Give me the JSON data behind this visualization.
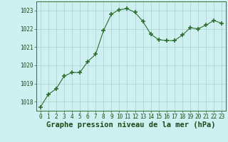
{
  "x": [
    0,
    1,
    2,
    3,
    4,
    5,
    6,
    7,
    8,
    9,
    10,
    11,
    12,
    13,
    14,
    15,
    16,
    17,
    18,
    19,
    20,
    21,
    22,
    23
  ],
  "y": [
    1017.7,
    1018.4,
    1018.7,
    1019.4,
    1019.6,
    1019.6,
    1020.2,
    1020.6,
    1021.9,
    1022.8,
    1023.05,
    1023.1,
    1022.9,
    1022.4,
    1021.7,
    1021.4,
    1021.35,
    1021.35,
    1021.65,
    1022.05,
    1022.0,
    1022.2,
    1022.45,
    1022.3
  ],
  "line_color": "#2d6e2d",
  "marker": "+",
  "marker_size": 4,
  "background_color": "#cff0f0",
  "grid_color": "#aacece",
  "xlabel": "Graphe pression niveau de la mer (hPa)",
  "xlim": [
    -0.5,
    23.5
  ],
  "ylim": [
    1017.5,
    1023.5
  ],
  "yticks": [
    1018,
    1019,
    1020,
    1021,
    1022,
    1023
  ],
  "xticks": [
    0,
    1,
    2,
    3,
    4,
    5,
    6,
    7,
    8,
    9,
    10,
    11,
    12,
    13,
    14,
    15,
    16,
    17,
    18,
    19,
    20,
    21,
    22,
    23
  ],
  "tick_label_fontsize": 5.5,
  "xlabel_fontsize": 7.5,
  "spine_color": "#2d6e2d",
  "label_color": "#1a4a1a"
}
